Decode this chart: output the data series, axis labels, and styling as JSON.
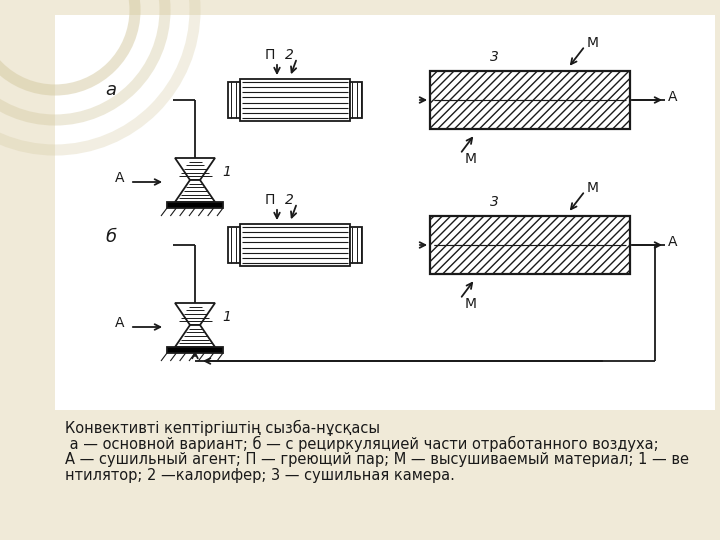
{
  "bg_color": "#f0ead8",
  "white_area": "#ffffff",
  "line_color": "#1a1a1a",
  "title_line1": "Конвективті кептіргіштің сызба-нұсқасы",
  "title_line2": " а — основной вариант; б — с рециркуляцией части отработанного воздуха;",
  "title_line3": "А — сушильный агент; П — греющий пар; М — высушиваемый материал; 1 — ве",
  "title_line4": "нтилятор; 2 —калорифер; 3 — сушильная камера.",
  "font_size_caption": 10.5
}
